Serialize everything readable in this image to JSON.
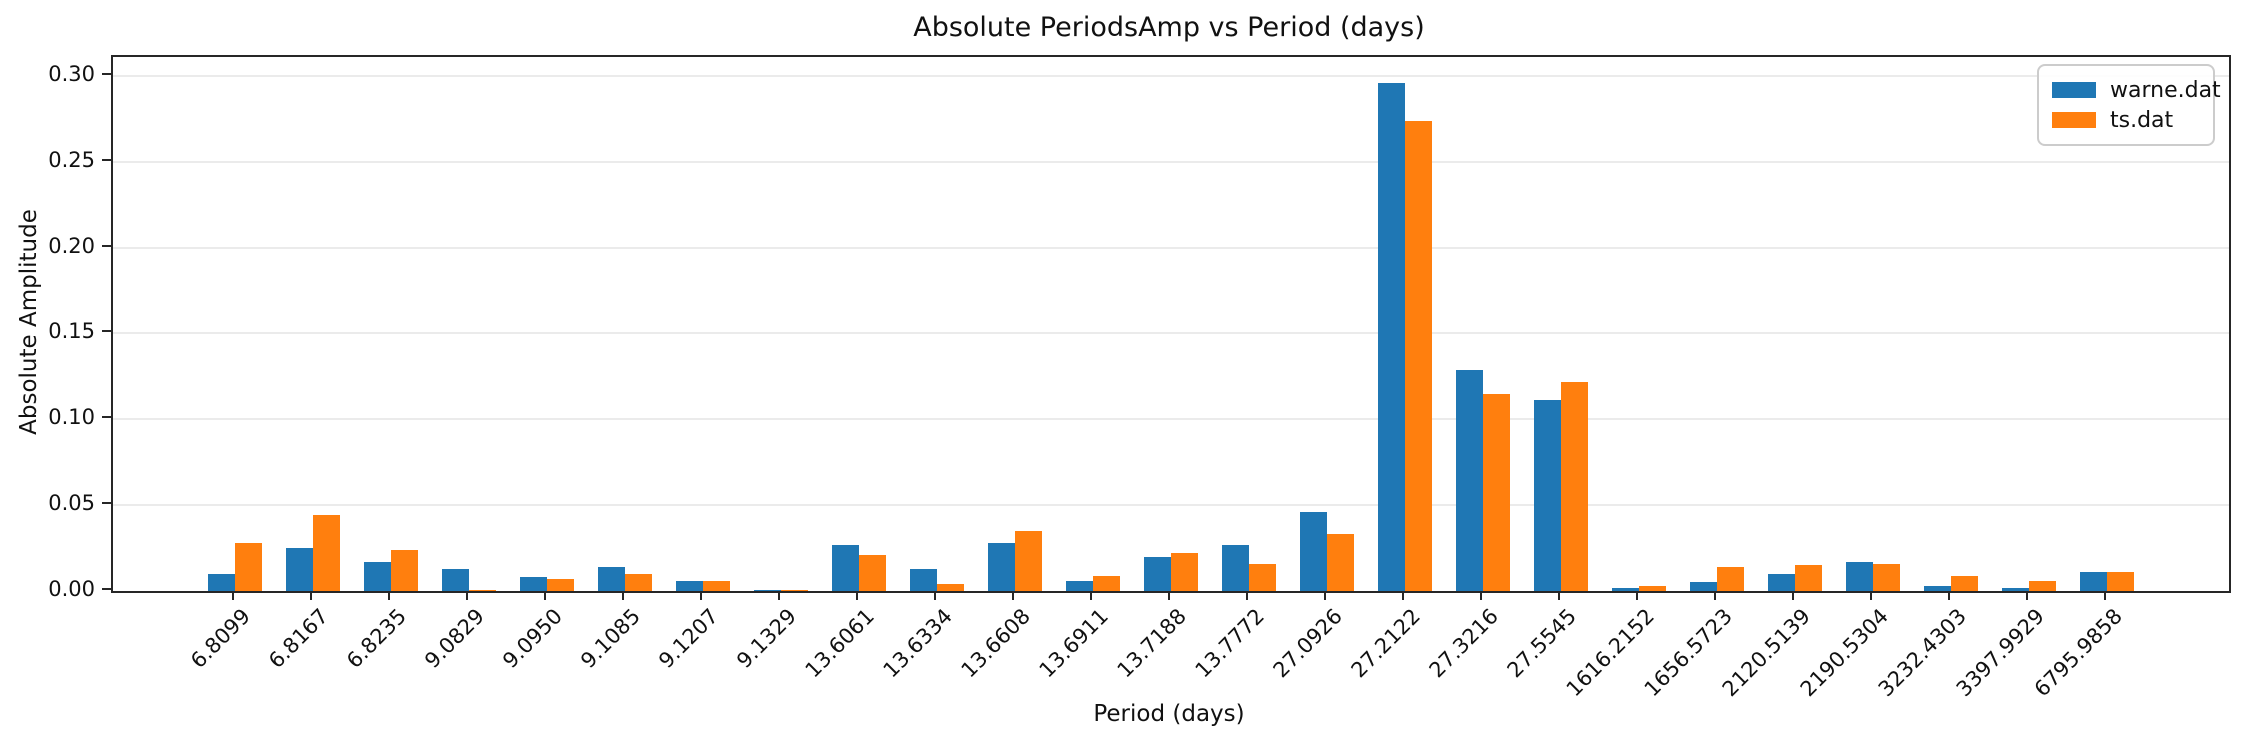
{
  "chart_data": {
    "type": "bar",
    "title": "Absolute PeriodsAmp vs Period (days)",
    "xlabel": "Period (days)",
    "ylabel": "Absolute Amplitude",
    "categories": [
      "6.8099",
      "6.8167",
      "6.8235",
      "9.0829",
      "9.0950",
      "9.1085",
      "9.1207",
      "9.1329",
      "13.6061",
      "13.6334",
      "13.6608",
      "13.6911",
      "13.7188",
      "13.7772",
      "27.0926",
      "27.2122",
      "27.3216",
      "27.5545",
      "1616.2152",
      "1656.5723",
      "2120.5139",
      "2190.5304",
      "3232.4303",
      "3397.9929",
      "6795.9858"
    ],
    "series": [
      {
        "name": "warne.dat",
        "color": "#1f77b4",
        "values": [
          0.01,
          0.025,
          0.017,
          0.013,
          0.008,
          0.014,
          0.006,
          0.0005,
          0.027,
          0.013,
          0.028,
          0.006,
          0.02,
          0.027,
          0.046,
          0.296,
          0.129,
          0.111,
          0.002,
          0.005,
          0.01,
          0.017,
          0.003,
          0.002,
          0.011
        ]
      },
      {
        "name": "ts.dat",
        "color": "#ff7f0e",
        "values": [
          0.028,
          0.044,
          0.024,
          0.0005,
          0.007,
          0.01,
          0.006,
          0.0005,
          0.021,
          0.004,
          0.035,
          0.009,
          0.022,
          0.016,
          0.033,
          0.274,
          0.115,
          0.122,
          0.003,
          0.014,
          0.015,
          0.016,
          0.009,
          0.006,
          0.011
        ]
      }
    ],
    "ylim": [
      0,
      0.311
    ],
    "yticks": [
      0.0,
      0.05,
      0.1,
      0.15,
      0.2,
      0.25,
      0.3
    ],
    "ytick_labels": [
      "0.00",
      "0.05",
      "0.10",
      "0.15",
      "0.20",
      "0.25",
      "0.30"
    ],
    "grid": true,
    "legend_position": "upper right",
    "xtick_rotation_deg": 45
  }
}
